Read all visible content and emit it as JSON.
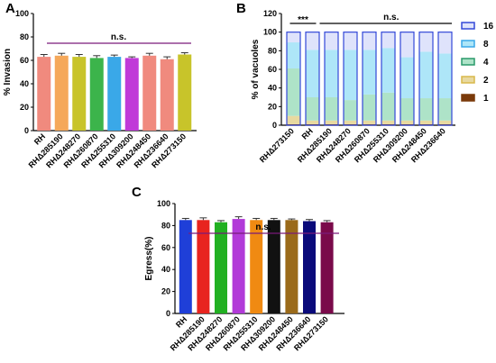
{
  "panels": [
    "A",
    "B",
    "C"
  ],
  "chart_data": [
    {
      "panel": "A",
      "type": "bar",
      "categories": [
        "RH",
        "RHΔ285190",
        "RHΔ248270",
        "RHΔ260870",
        "RHΔ255310",
        "RHΔ309200",
        "RHΔ248450",
        "RHΔ236640",
        "RHΔ273150"
      ],
      "values": [
        63,
        64,
        63,
        62,
        63,
        62,
        64,
        61,
        65
      ],
      "errors": [
        2,
        2,
        2,
        2,
        1.5,
        1,
        2,
        2,
        1.5
      ],
      "colors": [
        "#f08a7e",
        "#f5a85a",
        "#c8c42a",
        "#3cb44b",
        "#3aa8e8",
        "#c03ad8",
        "#f08a7e",
        "#f08a7e",
        "#c8c42a"
      ],
      "ylabel": "% Invasion",
      "ylim": [
        0,
        100
      ],
      "yticks": [
        0,
        20,
        40,
        60,
        80,
        100
      ],
      "significance": "n.s."
    },
    {
      "panel": "B",
      "type": "bar",
      "stacked": true,
      "categories": [
        "RHΔ273150",
        "RH",
        "RHΔ285190",
        "RHΔ248270",
        "RHΔ260870",
        "RHΔ255310",
        "RHΔ309200",
        "RHΔ248450",
        "RHΔ236640"
      ],
      "series": [
        {
          "name": "1",
          "color": "#7a3a0a",
          "values": [
            1,
            1,
            1,
            1,
            1,
            1,
            1,
            1,
            1
          ]
        },
        {
          "name": "2",
          "color": "#e8d9a0",
          "values": [
            9,
            4,
            4,
            4,
            4,
            4,
            4,
            4,
            4
          ]
        },
        {
          "name": "4",
          "color": "#aee3c8",
          "values": [
            51,
            25,
            25,
            22,
            28,
            30,
            24,
            24,
            24
          ]
        },
        {
          "name": "8",
          "color": "#aee6f8",
          "values": [
            28,
            51,
            51,
            54,
            48,
            48,
            44,
            50,
            48
          ]
        },
        {
          "name": "16",
          "color": "#dfe3fb",
          "values": [
            11,
            19,
            19,
            19,
            19,
            17,
            27,
            21,
            23
          ]
        }
      ],
      "ylabel": "% of vacuoles",
      "ylim": [
        0,
        120
      ],
      "yticks": [
        0,
        20,
        40,
        60,
        80,
        100,
        120
      ],
      "legend_order": [
        "16",
        "8",
        "4",
        "2",
        "1"
      ],
      "legend_position": "right",
      "sig_star": "***",
      "significance": "n.s."
    },
    {
      "panel": "C",
      "type": "bar",
      "categories": [
        "RH",
        "RHΔ285190",
        "RHΔ248270",
        "RHΔ260870",
        "RHΔ255310",
        "RHΔ309200",
        "RHΔ248450",
        "RHΔ236640",
        "RHΔ273150"
      ],
      "values": [
        85,
        85,
        83,
        86,
        85,
        85,
        85,
        84,
        83
      ],
      "errors": [
        1.5,
        2,
        1.5,
        2,
        1.5,
        1.5,
        1,
        1.5,
        1.5
      ],
      "colors": [
        "#1f3fd8",
        "#e8241f",
        "#22b022",
        "#b23ad8",
        "#f08a12",
        "#111111",
        "#9a6a1a",
        "#0a0a7a",
        "#7a0a4a"
      ],
      "ylabel": "Egress(%)",
      "ylim": [
        0,
        100
      ],
      "yticks": [
        0,
        20,
        40,
        60,
        80,
        100
      ],
      "significance": "n.s."
    }
  ]
}
